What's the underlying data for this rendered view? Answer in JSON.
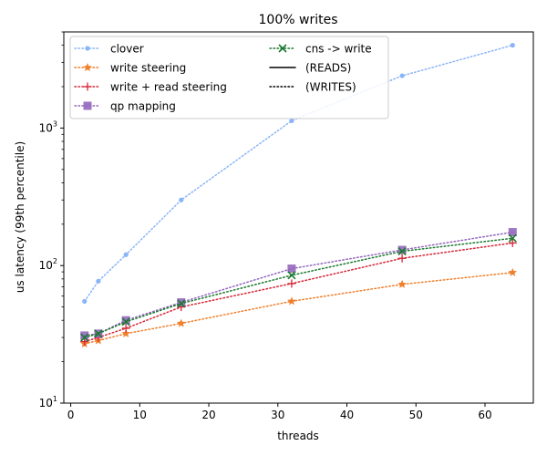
{
  "chart_data": {
    "type": "line",
    "title": "100% writes",
    "xlabel": "threads",
    "ylabel": "us latency (99th percentile)",
    "xlim": [
      -1,
      67
    ],
    "ylim": [
      10,
      5000
    ],
    "yscale": "log",
    "xticks": [
      0,
      10,
      20,
      30,
      40,
      50,
      60
    ],
    "yticks": [
      {
        "value": 10,
        "base": "10",
        "exp": "1"
      },
      {
        "value": 100,
        "base": "10",
        "exp": "2"
      },
      {
        "value": 1000,
        "base": "10",
        "exp": "3"
      }
    ],
    "grid": false,
    "legend_position": "top-left",
    "series": [
      {
        "name": "clover",
        "color": "#8ab4f8",
        "marker": "dot",
        "linestyle": "dotted",
        "x": [
          2,
          4,
          8,
          16,
          32,
          48,
          64
        ],
        "y": [
          55,
          77,
          120,
          300,
          1130,
          2400,
          4000
        ]
      },
      {
        "name": "write steering",
        "color": "#f07f2b",
        "marker": "star",
        "linestyle": "dotted",
        "x": [
          2,
          4,
          8,
          16,
          32,
          48,
          64
        ],
        "y": [
          27,
          28.5,
          32,
          38,
          55,
          73,
          89
        ]
      },
      {
        "name": "write + read steering",
        "color": "#d62738",
        "marker": "plus",
        "linestyle": "dotted",
        "x": [
          2,
          4,
          8,
          16,
          32,
          48,
          64
        ],
        "y": [
          28,
          30,
          35,
          50,
          74,
          113,
          146
        ]
      },
      {
        "name": "qp mapping",
        "color": "#9467bd",
        "marker": "square",
        "linestyle": "dotted",
        "x": [
          2,
          4,
          8,
          16,
          32,
          48,
          64
        ],
        "y": [
          31,
          32,
          40,
          54,
          95,
          130,
          175
        ]
      },
      {
        "name": "cns -> write",
        "color": "#1a7a2e",
        "marker": "x",
        "linestyle": "dotted",
        "x": [
          2,
          4,
          8,
          16,
          32,
          48,
          64
        ],
        "y": [
          30,
          32,
          39,
          53,
          85,
          127,
          158
        ]
      }
    ],
    "legend_extra": [
      {
        "label": "(READS)",
        "linestyle": "solid",
        "color": "#000000"
      },
      {
        "label": "(WRITES)",
        "linestyle": "dotted",
        "color": "#000000"
      }
    ]
  }
}
